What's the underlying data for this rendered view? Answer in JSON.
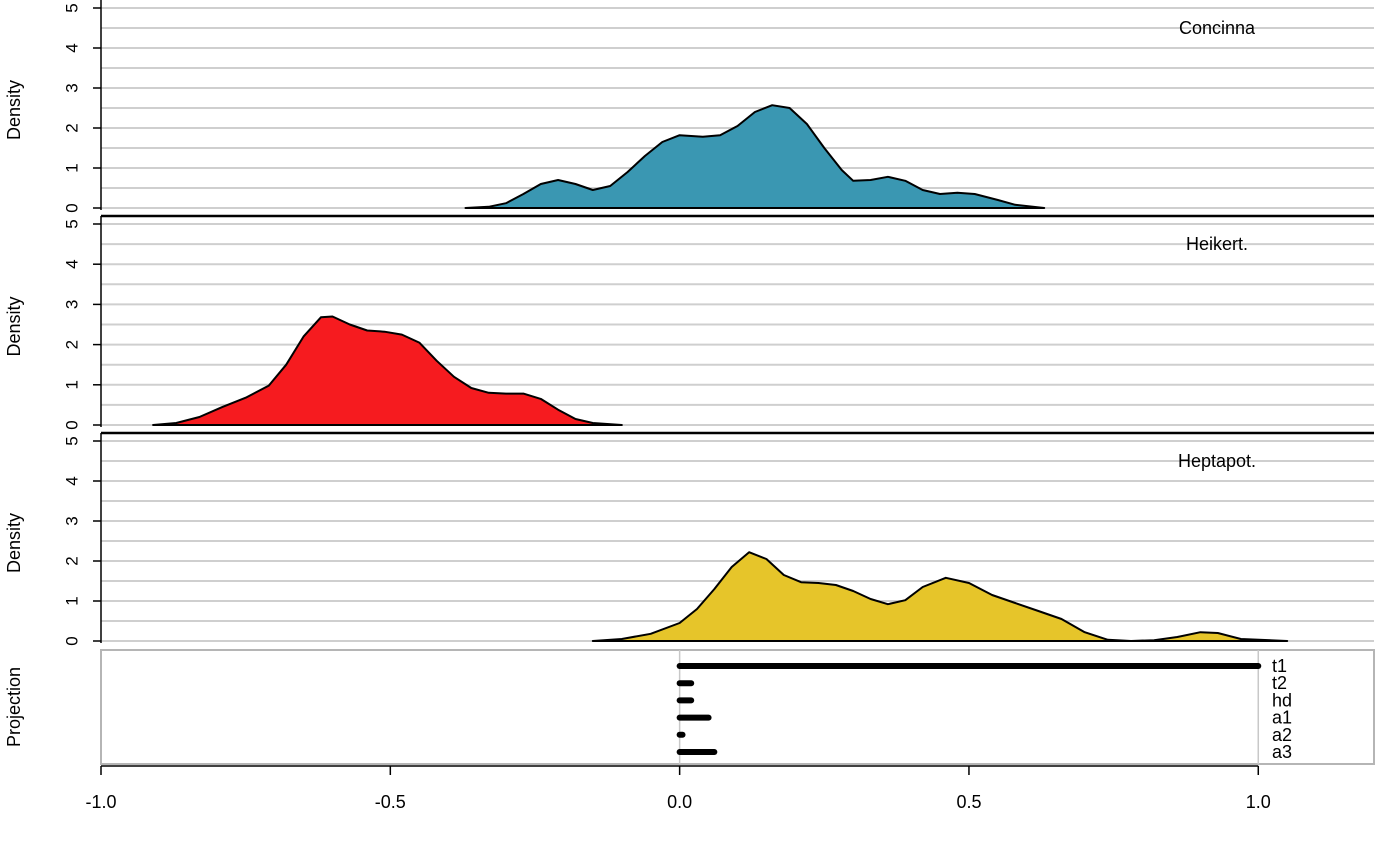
{
  "chart_data": {
    "type": "area",
    "x_axis": {
      "range": [
        -1.0,
        1.2
      ],
      "ticks": [
        -1.0,
        -0.5,
        0.0,
        0.5,
        1.0
      ],
      "tick_labels": [
        "-1.0",
        "-0.5",
        "0.0",
        "0.5",
        "1.0"
      ]
    },
    "panels": [
      {
        "name": "Concinna",
        "ylabel": "Density",
        "ylim": [
          0,
          5
        ],
        "y_ticks": [
          0,
          1,
          2,
          3,
          4,
          5
        ],
        "y_tick_labels": [
          "0",
          "1",
          "2",
          "3",
          "4",
          "5"
        ],
        "fill": "#3a97b2",
        "points": [
          [
            -0.37,
            0.0
          ],
          [
            -0.33,
            0.03
          ],
          [
            -0.3,
            0.12
          ],
          [
            -0.27,
            0.35
          ],
          [
            -0.24,
            0.6
          ],
          [
            -0.21,
            0.7
          ],
          [
            -0.18,
            0.6
          ],
          [
            -0.15,
            0.45
          ],
          [
            -0.12,
            0.55
          ],
          [
            -0.09,
            0.9
          ],
          [
            -0.06,
            1.3
          ],
          [
            -0.03,
            1.65
          ],
          [
            0.0,
            1.82
          ],
          [
            0.04,
            1.78
          ],
          [
            0.07,
            1.82
          ],
          [
            0.1,
            2.05
          ],
          [
            0.13,
            2.4
          ],
          [
            0.16,
            2.57
          ],
          [
            0.19,
            2.5
          ],
          [
            0.22,
            2.1
          ],
          [
            0.25,
            1.5
          ],
          [
            0.28,
            0.95
          ],
          [
            0.3,
            0.68
          ],
          [
            0.33,
            0.7
          ],
          [
            0.36,
            0.78
          ],
          [
            0.39,
            0.68
          ],
          [
            0.42,
            0.45
          ],
          [
            0.45,
            0.35
          ],
          [
            0.48,
            0.38
          ],
          [
            0.51,
            0.35
          ],
          [
            0.55,
            0.2
          ],
          [
            0.58,
            0.08
          ],
          [
            0.63,
            0.0
          ]
        ]
      },
      {
        "name": "Heikert.",
        "ylabel": "Density",
        "ylim": [
          0,
          5
        ],
        "y_ticks": [
          0,
          1,
          2,
          3,
          4,
          5
        ],
        "y_tick_labels": [
          "0",
          "1",
          "2",
          "3",
          "4",
          "5"
        ],
        "fill": "#f61b1f",
        "points": [
          [
            -0.91,
            0.0
          ],
          [
            -0.87,
            0.05
          ],
          [
            -0.83,
            0.2
          ],
          [
            -0.79,
            0.45
          ],
          [
            -0.75,
            0.68
          ],
          [
            -0.71,
            0.98
          ],
          [
            -0.68,
            1.5
          ],
          [
            -0.65,
            2.2
          ],
          [
            -0.62,
            2.68
          ],
          [
            -0.6,
            2.7
          ],
          [
            -0.57,
            2.5
          ],
          [
            -0.54,
            2.35
          ],
          [
            -0.51,
            2.32
          ],
          [
            -0.48,
            2.25
          ],
          [
            -0.45,
            2.05
          ],
          [
            -0.42,
            1.6
          ],
          [
            -0.39,
            1.2
          ],
          [
            -0.36,
            0.92
          ],
          [
            -0.33,
            0.8
          ],
          [
            -0.3,
            0.78
          ],
          [
            -0.27,
            0.78
          ],
          [
            -0.24,
            0.65
          ],
          [
            -0.21,
            0.38
          ],
          [
            -0.18,
            0.15
          ],
          [
            -0.15,
            0.05
          ],
          [
            -0.1,
            0.0
          ]
        ]
      },
      {
        "name": "Heptapot.",
        "ylabel": "Density",
        "ylim": [
          0,
          5
        ],
        "y_ticks": [
          0,
          1,
          2,
          3,
          4,
          5
        ],
        "y_tick_labels": [
          "0",
          "1",
          "2",
          "3",
          "4",
          "5"
        ],
        "fill": "#e6c52a",
        "points": [
          [
            -0.15,
            0.0
          ],
          [
            -0.1,
            0.05
          ],
          [
            -0.05,
            0.18
          ],
          [
            0.0,
            0.45
          ],
          [
            0.03,
            0.8
          ],
          [
            0.06,
            1.3
          ],
          [
            0.09,
            1.85
          ],
          [
            0.12,
            2.22
          ],
          [
            0.15,
            2.05
          ],
          [
            0.18,
            1.65
          ],
          [
            0.21,
            1.47
          ],
          [
            0.24,
            1.45
          ],
          [
            0.27,
            1.4
          ],
          [
            0.3,
            1.25
          ],
          [
            0.33,
            1.05
          ],
          [
            0.36,
            0.92
          ],
          [
            0.39,
            1.02
          ],
          [
            0.42,
            1.35
          ],
          [
            0.46,
            1.58
          ],
          [
            0.5,
            1.45
          ],
          [
            0.54,
            1.15
          ],
          [
            0.58,
            0.95
          ],
          [
            0.62,
            0.75
          ],
          [
            0.66,
            0.55
          ],
          [
            0.7,
            0.22
          ],
          [
            0.74,
            0.03
          ],
          [
            0.78,
            0.0
          ],
          [
            0.82,
            0.02
          ],
          [
            0.86,
            0.1
          ],
          [
            0.9,
            0.22
          ],
          [
            0.93,
            0.2
          ],
          [
            0.97,
            0.05
          ],
          [
            1.05,
            0.0
          ]
        ]
      }
    ],
    "projection": {
      "ylabel": "Projection",
      "bars": [
        {
          "label": "t1",
          "value": 1.0
        },
        {
          "label": "t2",
          "value": 0.02
        },
        {
          "label": "hd",
          "value": 0.02
        },
        {
          "label": "a1",
          "value": 0.05
        },
        {
          "label": "a2",
          "value": 0.005
        },
        {
          "label": "a3",
          "value": 0.06
        }
      ]
    },
    "grid": true
  }
}
